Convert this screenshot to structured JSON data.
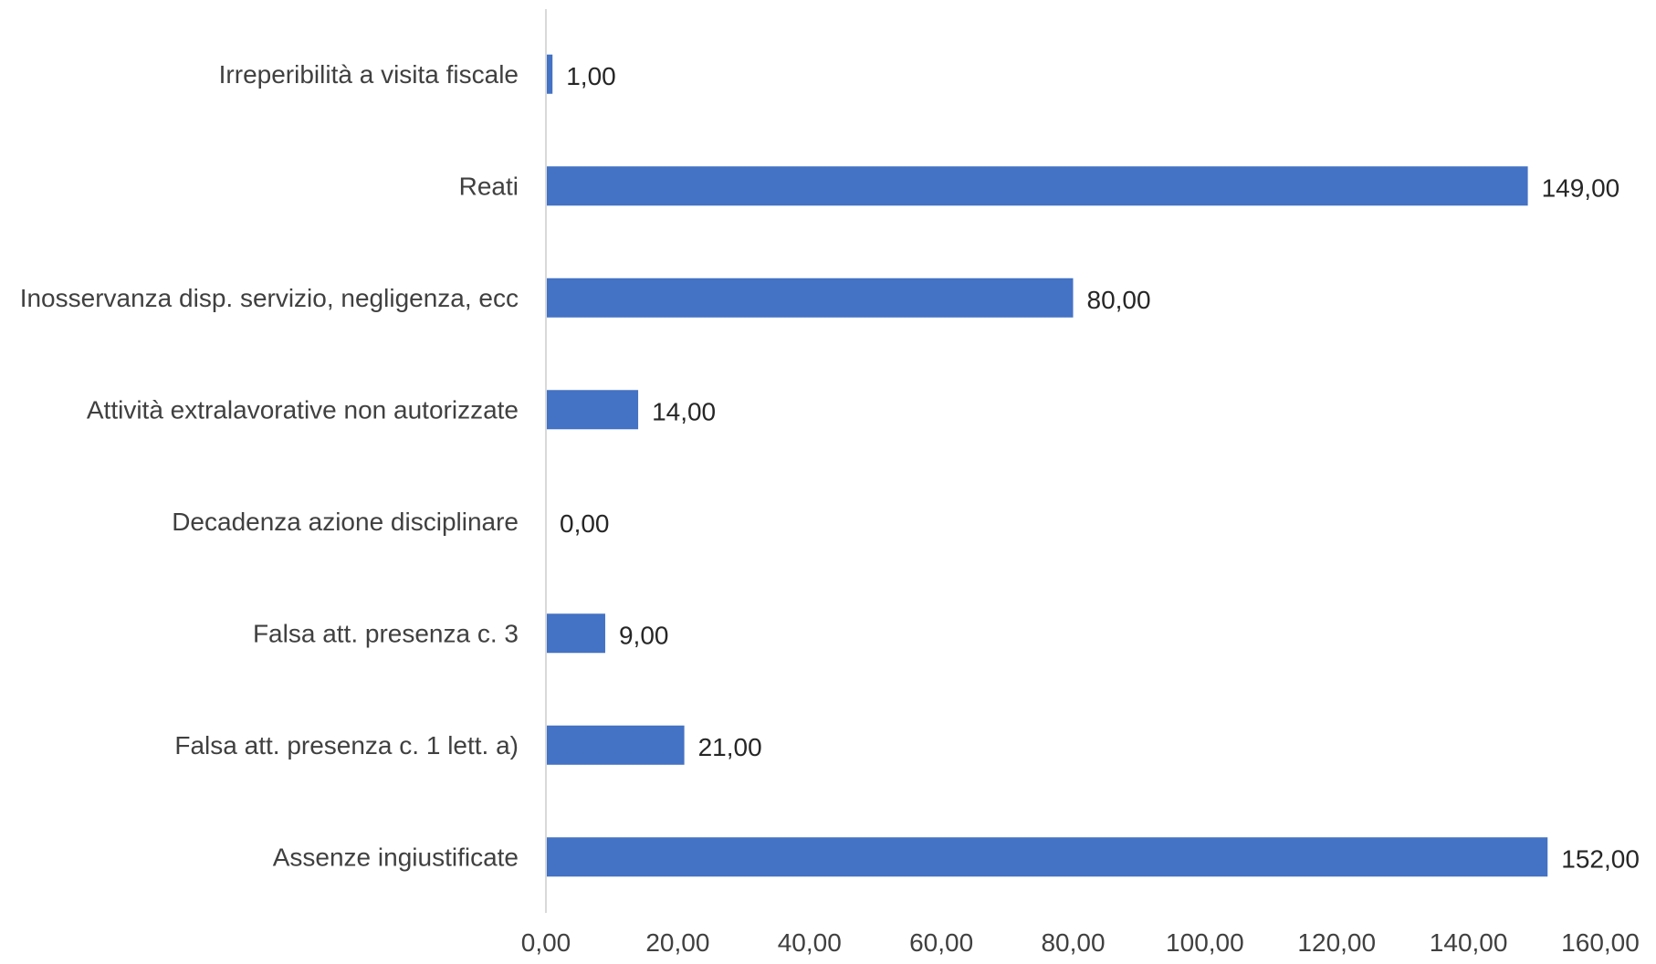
{
  "chart_data": {
    "type": "bar",
    "orientation": "horizontal",
    "title": "",
    "xlabel": "",
    "ylabel": "",
    "categories": [
      "Irreperibilità a visita fiscale",
      "Reati",
      "Inosservanza disp. servizio, negligenza, ecc",
      "Attività extralavorative non autorizzate",
      "Decadenza azione disciplinare",
      "Falsa att. presenza c. 3",
      "Falsa att. presenza c. 1 lett. a)",
      "Assenze ingiustificate"
    ],
    "values": [
      1,
      149,
      80,
      14,
      0,
      9,
      21,
      152
    ],
    "value_labels": [
      "1,00",
      "149,00",
      "80,00",
      "14,00",
      "0,00",
      "9,00",
      "21,00",
      "152,00"
    ],
    "xlim": [
      0,
      160
    ],
    "ticks": [
      0,
      20,
      40,
      60,
      80,
      100,
      120,
      140,
      160
    ],
    "tick_labels": [
      "0,00",
      "20,00",
      "40,00",
      "60,00",
      "80,00",
      "100,00",
      "120,00",
      "140,00",
      "160,00"
    ],
    "grid": false,
    "legend": "none",
    "colors": {
      "bar": "#4472C4",
      "axis": "#D9D9D9"
    }
  }
}
